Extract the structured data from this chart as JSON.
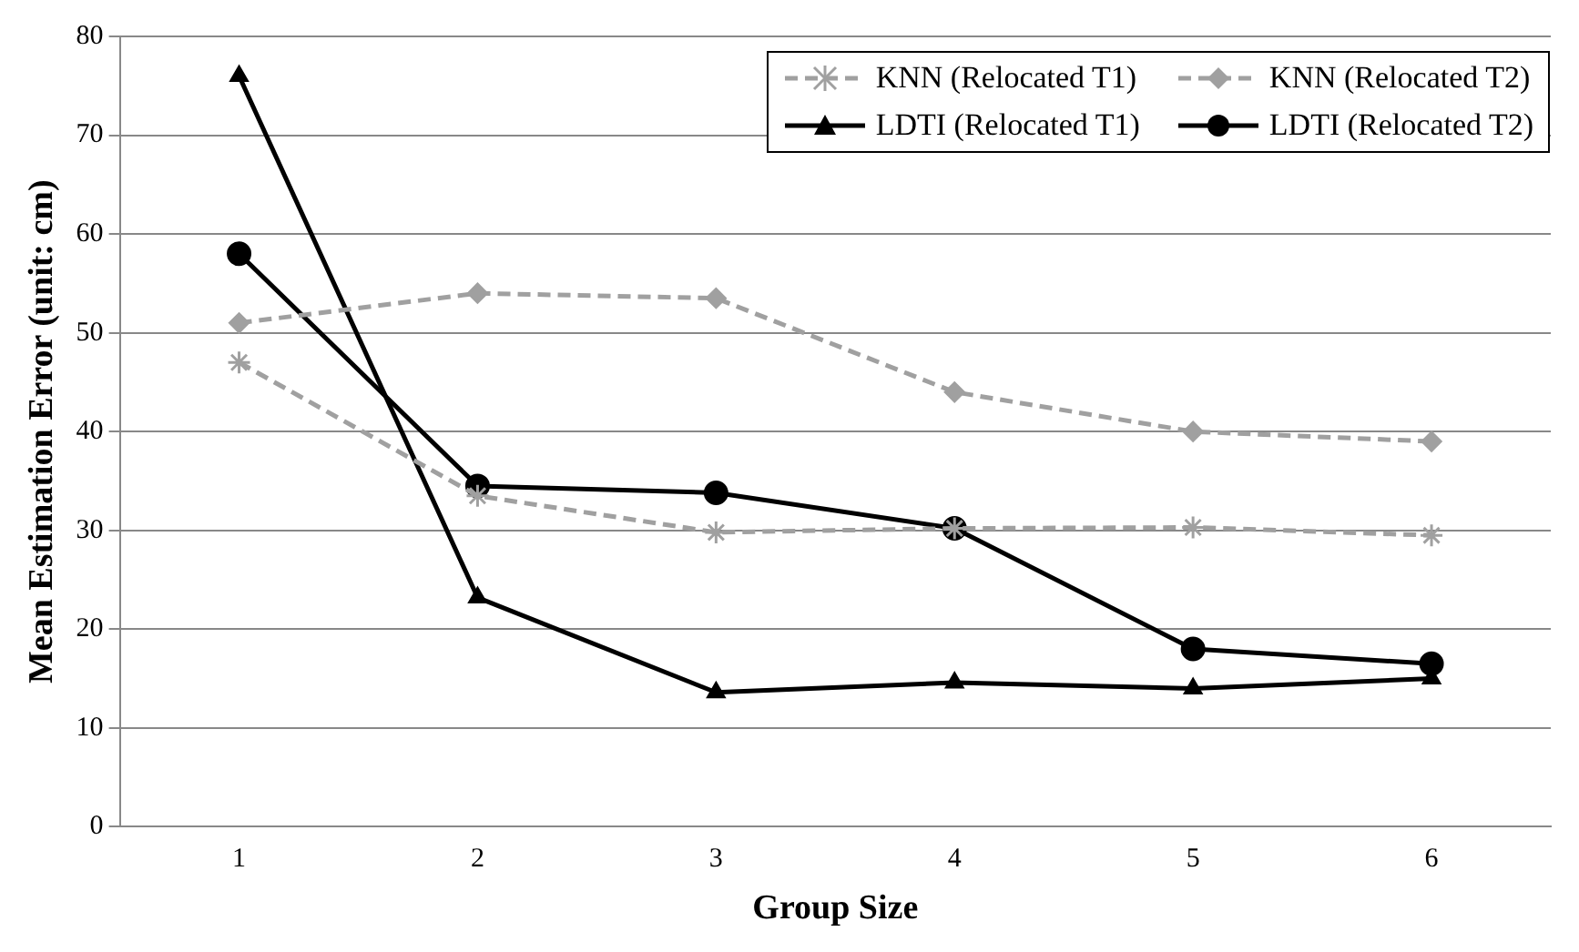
{
  "chart_data": {
    "type": "line",
    "xlabel": "Group Size",
    "ylabel": "Mean Estimation Error (unit: cm)",
    "categories": [
      "1",
      "2",
      "3",
      "4",
      "5",
      "6"
    ],
    "series": [
      {
        "name": "KNN (Relocated T1)",
        "color": "#a0a0a0",
        "marker": "cross",
        "line_style": "dashed",
        "values": [
          47,
          33.5,
          29.8,
          30.2,
          30.3,
          29.5
        ]
      },
      {
        "name": "KNN (Relocated T2)",
        "color": "#a0a0a0",
        "marker": "diamond",
        "line_style": "dashed",
        "values": [
          51,
          54,
          53.5,
          44,
          40,
          39
        ]
      },
      {
        "name": "LDTI (Relocated T1)",
        "color": "#000000",
        "marker": "triangle",
        "line_style": "solid",
        "values": [
          76,
          23.2,
          13.6,
          14.6,
          14,
          15
        ]
      },
      {
        "name": "LDTI (Relocated T2)",
        "color": "#000000",
        "marker": "circle",
        "line_style": "solid",
        "values": [
          58,
          34.5,
          33.8,
          30.2,
          18,
          16.5
        ]
      }
    ],
    "ylim": [
      0,
      80
    ],
    "yticks": [
      0,
      10,
      20,
      30,
      40,
      50,
      60,
      70,
      80
    ],
    "grid": "y",
    "legend": "top right"
  }
}
